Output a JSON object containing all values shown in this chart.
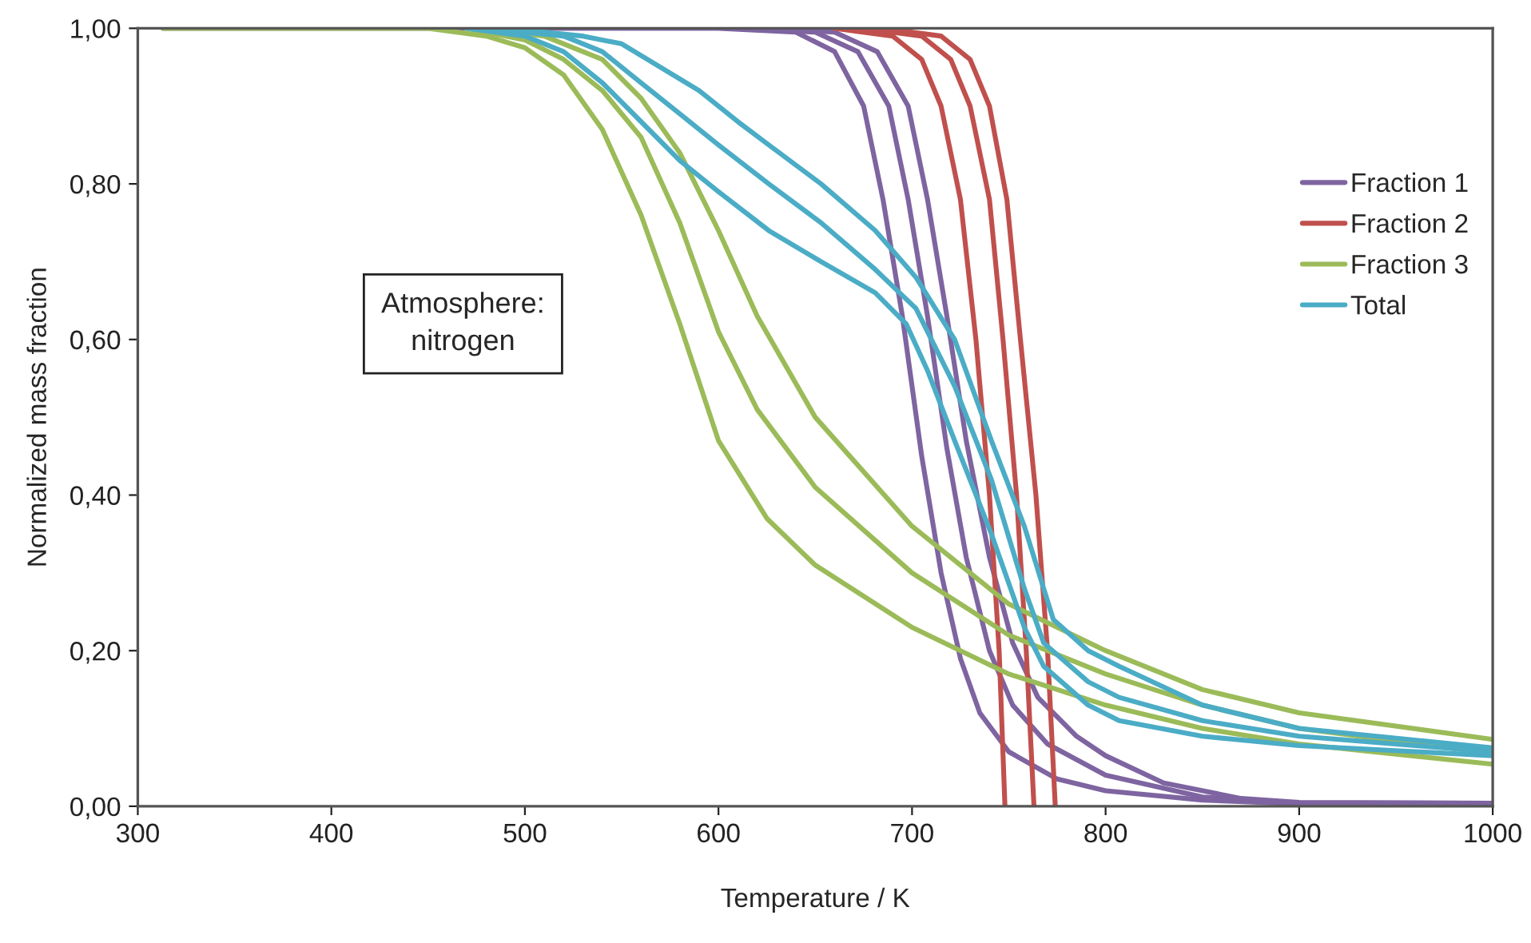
{
  "chart_data": {
    "type": "line",
    "xlabel": "Temperature / K",
    "ylabel": "Normalized mass fraction",
    "annotations": [
      "Atmosphere:\nnitrogen"
    ],
    "xlim": [
      300,
      1000
    ],
    "xticks": [
      300,
      400,
      500,
      600,
      700,
      800,
      900,
      1000
    ],
    "ylim": [
      0,
      1
    ],
    "yticks": [
      {
        "value": 0,
        "label": "0,00"
      },
      {
        "value": 0.2,
        "label": "0,20"
      },
      {
        "value": 0.4,
        "label": "0,40"
      },
      {
        "value": 0.6,
        "label": "0,60"
      },
      {
        "value": 0.8,
        "label": "0,80"
      },
      {
        "value": 1,
        "label": "1,00"
      }
    ],
    "grid": false,
    "legend": "right",
    "marker": "none",
    "line_style": "solid",
    "series": [
      {
        "name": "Fraction 1",
        "color": "#7e64a0",
        "x": [
          313,
          600,
          640,
          660,
          675,
          685,
          695,
          705,
          715,
          725,
          735,
          750,
          775,
          800,
          850,
          900,
          1000
        ],
        "values": [
          1,
          1,
          0.995,
          0.97,
          0.9,
          0.78,
          0.63,
          0.45,
          0.3,
          0.19,
          0.12,
          0.07,
          0.035,
          0.02,
          0.008,
          0.003,
          0
        ]
      },
      {
        "color": "#7e64a0",
        "x": [
          615,
          650,
          672,
          688,
          698,
          708,
          718,
          728,
          740,
          752,
          770,
          800,
          850,
          900,
          1000
        ],
        "values": [
          1,
          0.995,
          0.97,
          0.9,
          0.78,
          0.63,
          0.46,
          0.32,
          0.2,
          0.13,
          0.08,
          0.04,
          0.012,
          0.004,
          0.002
        ]
      },
      {
        "color": "#7e64a0",
        "x": [
          625,
          660,
          682,
          698,
          708,
          718,
          728,
          740,
          752,
          765,
          785,
          800,
          830,
          870,
          900,
          1000
        ],
        "values": [
          1,
          0.995,
          0.97,
          0.9,
          0.78,
          0.63,
          0.47,
          0.32,
          0.21,
          0.14,
          0.09,
          0.065,
          0.03,
          0.01,
          0.005,
          0.004
        ]
      },
      {
        "name": "Fraction 2",
        "color": "#c0504d",
        "x": [
          660,
          690,
          705,
          715,
          725,
          733,
          740,
          745,
          748
        ],
        "values": [
          1,
          0.99,
          0.96,
          0.9,
          0.78,
          0.6,
          0.4,
          0.2,
          0
        ]
      },
      {
        "color": "#c0504d",
        "x": [
          675,
          705,
          720,
          730,
          740,
          747,
          754,
          759,
          763
        ],
        "values": [
          1,
          0.99,
          0.96,
          0.9,
          0.78,
          0.6,
          0.4,
          0.2,
          0
        ]
      },
      {
        "color": "#c0504d",
        "x": [
          685,
          715,
          730,
          740,
          749,
          756,
          764,
          770,
          774
        ],
        "values": [
          1,
          0.99,
          0.96,
          0.9,
          0.78,
          0.6,
          0.4,
          0.2,
          0
        ]
      },
      {
        "name": "Fraction 3",
        "color": "#9bbb59",
        "x": [
          313,
          450,
          480,
          500,
          520,
          540,
          560,
          580,
          600,
          625,
          650,
          700,
          750,
          800,
          850,
          900,
          1000
        ],
        "values": [
          1,
          1,
          0.99,
          0.975,
          0.94,
          0.87,
          0.76,
          0.62,
          0.47,
          0.37,
          0.31,
          0.23,
          0.17,
          0.13,
          0.1,
          0.08,
          0.054
        ]
      },
      {
        "color": "#9bbb59",
        "x": [
          470,
          500,
          520,
          540,
          560,
          580,
          600,
          620,
          650,
          700,
          750,
          800,
          850,
          900,
          1000
        ],
        "values": [
          1,
          0.985,
          0.96,
          0.92,
          0.86,
          0.75,
          0.61,
          0.51,
          0.41,
          0.3,
          0.22,
          0.17,
          0.13,
          0.1,
          0.068
        ]
      },
      {
        "color": "#9bbb59",
        "x": [
          480,
          510,
          540,
          560,
          580,
          600,
          620,
          650,
          700,
          750,
          800,
          850,
          900,
          1000
        ],
        "values": [
          1,
          0.99,
          0.96,
          0.91,
          0.84,
          0.74,
          0.63,
          0.5,
          0.36,
          0.26,
          0.2,
          0.15,
          0.12,
          0.086
        ]
      },
      {
        "name": "Total",
        "color": "#4bacc6",
        "x": [
          470,
          500,
          520,
          540,
          560,
          580,
          600,
          626,
          653,
          681,
          697,
          708,
          722,
          741,
          758,
          768,
          791,
          807,
          850,
          900,
          1000
        ],
        "values": [
          1,
          0.99,
          0.97,
          0.93,
          0.88,
          0.83,
          0.79,
          0.74,
          0.7,
          0.66,
          0.62,
          0.56,
          0.47,
          0.35,
          0.23,
          0.18,
          0.13,
          0.11,
          0.09,
          0.078,
          0.065
        ]
      },
      {
        "color": "#4bacc6",
        "x": [
          480,
          520,
          540,
          560,
          580,
          600,
          626,
          653,
          681,
          702,
          722,
          741,
          758,
          768,
          791,
          807,
          850,
          900,
          1000
        ],
        "values": [
          1,
          0.99,
          0.97,
          0.93,
          0.89,
          0.85,
          0.8,
          0.75,
          0.69,
          0.64,
          0.54,
          0.42,
          0.28,
          0.21,
          0.16,
          0.14,
          0.11,
          0.09,
          0.07
        ]
      },
      {
        "color": "#4bacc6",
        "x": [
          490,
          530,
          550,
          570,
          590,
          610,
          626,
          653,
          681,
          702,
          722,
          741,
          758,
          768,
          773,
          791,
          807,
          850,
          900,
          1000
        ],
        "values": [
          1,
          0.99,
          0.98,
          0.95,
          0.92,
          0.88,
          0.85,
          0.8,
          0.74,
          0.68,
          0.6,
          0.47,
          0.36,
          0.28,
          0.24,
          0.2,
          0.18,
          0.13,
          0.1,
          0.075
        ]
      }
    ]
  }
}
